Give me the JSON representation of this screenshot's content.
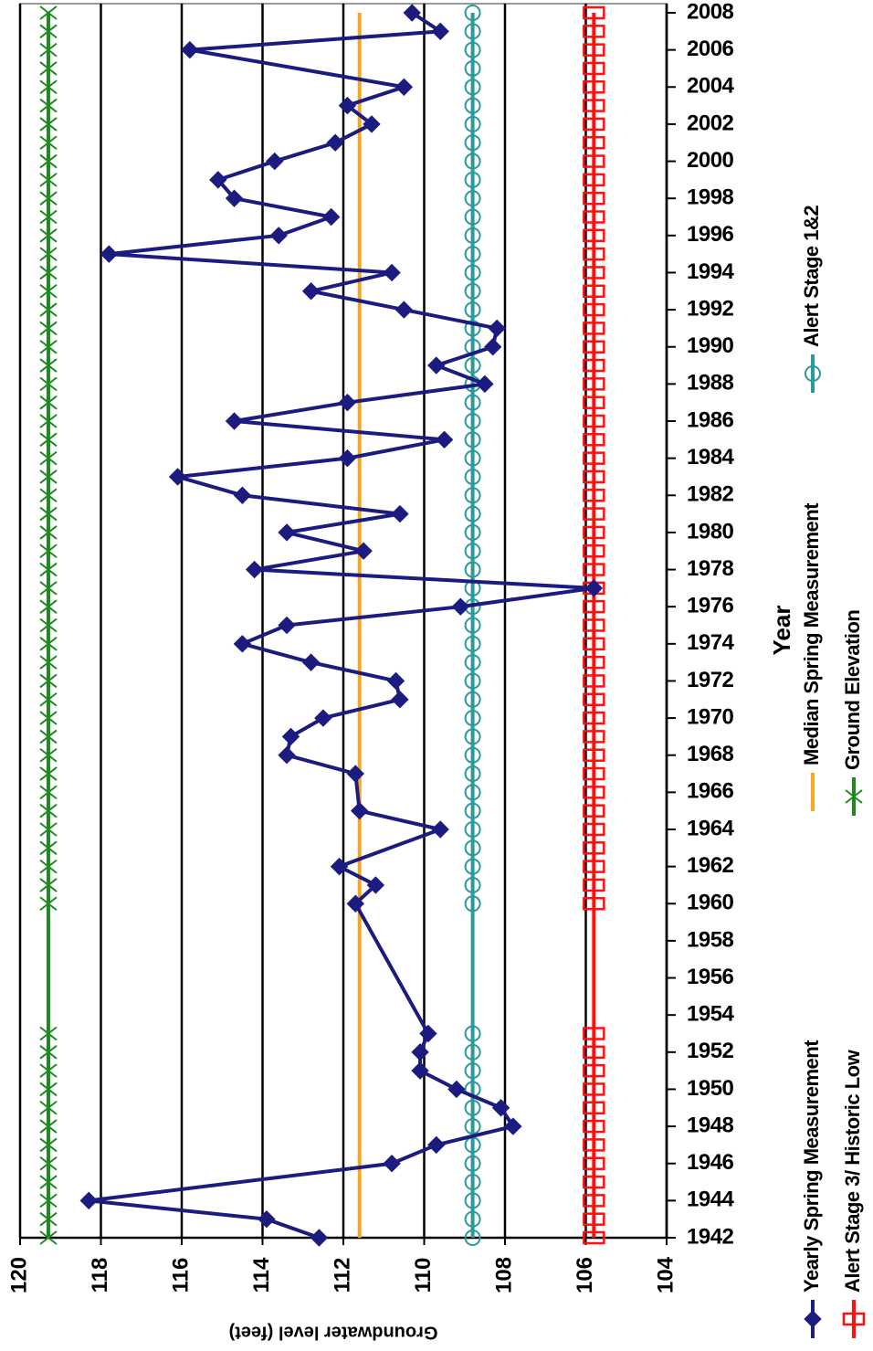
{
  "chart_data": {
    "type": "line",
    "x_label": "Year",
    "y_label": "Groundwater level (feet)",
    "xlim": [
      1942,
      2008
    ],
    "xticks": [
      1942,
      1944,
      1946,
      1948,
      1950,
      1952,
      1954,
      1956,
      1958,
      1960,
      1962,
      1964,
      1966,
      1968,
      1970,
      1972,
      1974,
      1976,
      1978,
      1980,
      1982,
      1984,
      1986,
      1988,
      1990,
      1992,
      1994,
      1996,
      1998,
      2000,
      2002,
      2004,
      2006,
      2008
    ],
    "ylim": [
      104,
      120
    ],
    "yticks": [
      104,
      106,
      108,
      110,
      112,
      114,
      116,
      118,
      120
    ],
    "grid": true,
    "series": [
      {
        "name": "Yearly Spring Measurement",
        "color": "#1c1c80",
        "marker": "diamond",
        "x": [
          1942,
          1943,
          1944,
          1946,
          1947,
          1948,
          1949,
          1950,
          1951,
          1952,
          1953,
          1960,
          1961,
          1962,
          1964,
          1965,
          1967,
          1968,
          1969,
          1970,
          1971,
          1972,
          1973,
          1974,
          1975,
          1976,
          1977,
          1978,
          1979,
          1980,
          1981,
          1982,
          1983,
          1984,
          1985,
          1986,
          1987,
          1988,
          1989,
          1990,
          1991,
          1992,
          1993,
          1994,
          1995,
          1996,
          1997,
          1998,
          1999,
          2000,
          2001,
          2002,
          2003,
          2004,
          2006,
          2007,
          2008
        ],
        "values": [
          112.6,
          113.9,
          118.3,
          110.8,
          109.7,
          107.8,
          108.1,
          109.2,
          110.1,
          110.1,
          109.9,
          111.7,
          111.2,
          112.1,
          109.6,
          111.6,
          111.7,
          113.4,
          113.3,
          112.5,
          110.6,
          110.7,
          112.8,
          114.5,
          113.4,
          109.1,
          105.8,
          114.2,
          111.5,
          113.4,
          110.6,
          114.5,
          116.1,
          111.9,
          109.5,
          114.7,
          111.9,
          108.5,
          109.7,
          108.3,
          108.2,
          110.5,
          112.8,
          110.8,
          117.8,
          113.6,
          112.3,
          114.7,
          115.1,
          113.7,
          112.2,
          111.3,
          111.9,
          110.5,
          115.8,
          109.6,
          110.3
        ]
      },
      {
        "name": "Alert Stage 3/ Historic Low",
        "color": "#ff1010",
        "marker": "square",
        "x": [
          1942,
          1943,
          1944,
          1945,
          1946,
          1947,
          1948,
          1949,
          1950,
          1951,
          1952,
          1953,
          1960,
          1961,
          1962,
          1963,
          1964,
          1965,
          1966,
          1967,
          1968,
          1969,
          1970,
          1971,
          1972,
          1973,
          1974,
          1975,
          1976,
          1977,
          1978,
          1979,
          1980,
          1981,
          1982,
          1983,
          1984,
          1985,
          1986,
          1987,
          1988,
          1989,
          1990,
          1991,
          1992,
          1993,
          1994,
          1995,
          1996,
          1997,
          1998,
          1999,
          2000,
          2001,
          2002,
          2003,
          2004,
          2005,
          2006,
          2007,
          2008
        ],
        "values": [
          105.8,
          105.8,
          105.8,
          105.8,
          105.8,
          105.8,
          105.8,
          105.8,
          105.8,
          105.8,
          105.8,
          105.8,
          105.8,
          105.8,
          105.8,
          105.8,
          105.8,
          105.8,
          105.8,
          105.8,
          105.8,
          105.8,
          105.8,
          105.8,
          105.8,
          105.8,
          105.8,
          105.8,
          105.8,
          105.8,
          105.8,
          105.8,
          105.8,
          105.8,
          105.8,
          105.8,
          105.8,
          105.8,
          105.8,
          105.8,
          105.8,
          105.8,
          105.8,
          105.8,
          105.8,
          105.8,
          105.8,
          105.8,
          105.8,
          105.8,
          105.8,
          105.8,
          105.8,
          105.8,
          105.8,
          105.8,
          105.8,
          105.8,
          105.8,
          105.8,
          105.8
        ]
      },
      {
        "name": "Median Spring Measurement",
        "color": "#f5a623",
        "marker": "none",
        "x": [
          1942,
          2008
        ],
        "values": [
          111.6,
          111.6
        ]
      },
      {
        "name": "Ground Elevation",
        "color": "#1f8a1f",
        "marker": "x",
        "x": [
          1942,
          1943,
          1944,
          1945,
          1946,
          1947,
          1948,
          1949,
          1950,
          1951,
          1952,
          1953,
          1960,
          1961,
          1962,
          1963,
          1964,
          1965,
          1966,
          1967,
          1968,
          1969,
          1970,
          1971,
          1972,
          1973,
          1974,
          1975,
          1976,
          1977,
          1978,
          1979,
          1980,
          1981,
          1982,
          1983,
          1984,
          1985,
          1986,
          1987,
          1988,
          1989,
          1990,
          1991,
          1992,
          1993,
          1994,
          1995,
          1996,
          1997,
          1998,
          1999,
          2000,
          2001,
          2002,
          2003,
          2004,
          2005,
          2006,
          2007,
          2008
        ],
        "values": [
          119.3,
          119.3,
          119.3,
          119.3,
          119.3,
          119.3,
          119.3,
          119.3,
          119.3,
          119.3,
          119.3,
          119.3,
          119.3,
          119.3,
          119.3,
          119.3,
          119.3,
          119.3,
          119.3,
          119.3,
          119.3,
          119.3,
          119.3,
          119.3,
          119.3,
          119.3,
          119.3,
          119.3,
          119.3,
          119.3,
          119.3,
          119.3,
          119.3,
          119.3,
          119.3,
          119.3,
          119.3,
          119.3,
          119.3,
          119.3,
          119.3,
          119.3,
          119.3,
          119.3,
          119.3,
          119.3,
          119.3,
          119.3,
          119.3,
          119.3,
          119.3,
          119.3,
          119.3,
          119.3,
          119.3,
          119.3,
          119.3,
          119.3,
          119.3,
          119.3,
          119.3
        ]
      },
      {
        "name": "Alert Stage 1&2",
        "color": "#2a9a9a",
        "marker": "circle",
        "x": [
          1942,
          1943,
          1944,
          1945,
          1946,
          1947,
          1948,
          1949,
          1950,
          1951,
          1952,
          1953,
          1960,
          1961,
          1962,
          1963,
          1964,
          1965,
          1966,
          1967,
          1968,
          1969,
          1970,
          1971,
          1972,
          1973,
          1974,
          1975,
          1976,
          1977,
          1978,
          1979,
          1980,
          1981,
          1982,
          1983,
          1984,
          1985,
          1986,
          1987,
          1988,
          1989,
          1990,
          1991,
          1992,
          1993,
          1994,
          1995,
          1996,
          1997,
          1998,
          1999,
          2000,
          2001,
          2002,
          2003,
          2004,
          2005,
          2006,
          2007,
          2008
        ],
        "values": [
          108.8,
          108.8,
          108.8,
          108.8,
          108.8,
          108.8,
          108.8,
          108.8,
          108.8,
          108.8,
          108.8,
          108.8,
          108.8,
          108.8,
          108.8,
          108.8,
          108.8,
          108.8,
          108.8,
          108.8,
          108.8,
          108.8,
          108.8,
          108.8,
          108.8,
          108.8,
          108.8,
          108.8,
          108.8,
          108.8,
          108.8,
          108.8,
          108.8,
          108.8,
          108.8,
          108.8,
          108.8,
          108.8,
          108.8,
          108.8,
          108.8,
          108.8,
          108.8,
          108.8,
          108.8,
          108.8,
          108.8,
          108.8,
          108.8,
          108.8,
          108.8,
          108.8,
          108.8,
          108.8,
          108.8,
          108.8,
          108.8,
          108.8,
          108.8,
          108.8,
          108.8
        ]
      }
    ]
  }
}
